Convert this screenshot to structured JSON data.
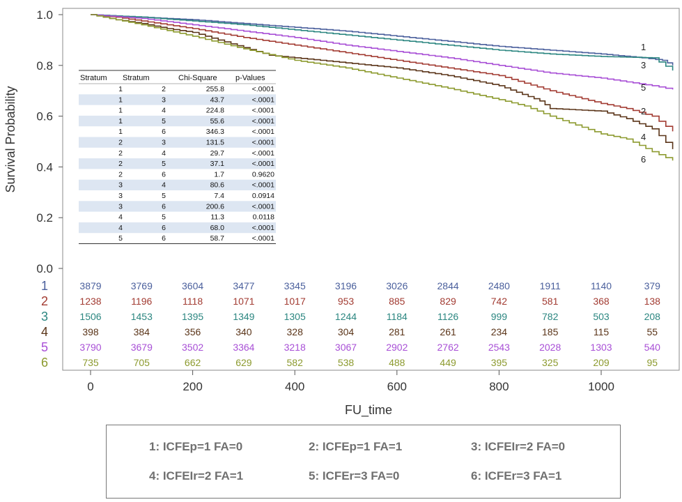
{
  "chart_data": {
    "type": "line",
    "subtype": "kaplan-meier survival curves",
    "xlabel": "FU_time",
    "ylabel": "Survival Probability",
    "xlim": [
      -30,
      1150
    ],
    "ylim": [
      0.0,
      1.0
    ],
    "xticks": [
      0,
      200,
      400,
      600,
      800,
      1000
    ],
    "yticks": [
      0.0,
      0.2,
      0.4,
      0.6,
      0.8,
      1.0
    ],
    "ytick_labels": [
      "0.0",
      "0.2",
      "0.4",
      "0.6",
      "0.8",
      "1.0"
    ],
    "grid": false,
    "series": [
      {
        "name": "1",
        "color": "#4a5f9c",
        "x": [
          0,
          100,
          200,
          300,
          400,
          500,
          600,
          700,
          800,
          900,
          1000,
          1080,
          1120,
          1140
        ],
        "y": [
          1.0,
          0.99,
          0.98,
          0.965,
          0.95,
          0.935,
          0.915,
          0.895,
          0.875,
          0.86,
          0.845,
          0.83,
          0.82,
          0.8
        ]
      },
      {
        "name": "2",
        "color": "#a23b32",
        "x": [
          0,
          50,
          100,
          200,
          300,
          400,
          500,
          600,
          700,
          800,
          900,
          1000,
          1050,
          1100,
          1140
        ],
        "y": [
          1.0,
          0.99,
          0.975,
          0.945,
          0.91,
          0.88,
          0.85,
          0.82,
          0.79,
          0.76,
          0.7,
          0.65,
          0.63,
          0.6,
          0.54
        ]
      },
      {
        "name": "3",
        "color": "#2b8680",
        "x": [
          0,
          100,
          200,
          300,
          400,
          500,
          600,
          700,
          800,
          900,
          1000,
          1100,
          1140
        ],
        "y": [
          1.0,
          0.99,
          0.975,
          0.96,
          0.94,
          0.92,
          0.9,
          0.88,
          0.86,
          0.845,
          0.835,
          0.83,
          0.78
        ]
      },
      {
        "name": "4",
        "color": "#5a3418",
        "x": [
          0,
          50,
          100,
          150,
          200,
          300,
          350,
          400,
          500,
          600,
          700,
          800,
          880,
          900,
          1000,
          1050,
          1100,
          1140
        ],
        "y": [
          1.0,
          0.98,
          0.965,
          0.945,
          0.93,
          0.87,
          0.84,
          0.83,
          0.81,
          0.79,
          0.76,
          0.72,
          0.66,
          0.63,
          0.62,
          0.59,
          0.55,
          0.47
        ]
      },
      {
        "name": "5",
        "color": "#a84fd6",
        "x": [
          0,
          100,
          200,
          300,
          400,
          500,
          600,
          700,
          800,
          900,
          1000,
          1100,
          1140
        ],
        "y": [
          1.0,
          0.985,
          0.96,
          0.935,
          0.91,
          0.88,
          0.855,
          0.83,
          0.8,
          0.77,
          0.75,
          0.72,
          0.705
        ]
      },
      {
        "name": "6",
        "color": "#8c9a2e",
        "x": [
          0,
          50,
          100,
          200,
          300,
          400,
          500,
          600,
          700,
          800,
          850,
          900,
          1000,
          1050,
          1100,
          1140
        ],
        "y": [
          1.0,
          0.98,
          0.96,
          0.915,
          0.865,
          0.82,
          0.79,
          0.75,
          0.71,
          0.665,
          0.64,
          0.6,
          0.53,
          0.51,
          0.46,
          0.425
        ]
      }
    ],
    "curve_labels": [
      "1",
      "3",
      "5",
      "2",
      "4",
      "6"
    ],
    "at_risk": {
      "x": [
        0,
        100,
        200,
        300,
        400,
        500,
        600,
        700,
        800,
        900,
        1000,
        1100
      ],
      "rows": [
        {
          "label": "1",
          "color": "#4a5f9c",
          "values": [
            "3879",
            "3769",
            "3604",
            "3477",
            "3345",
            "3196",
            "3026",
            "2844",
            "2480",
            "1911",
            "1140",
            "379"
          ]
        },
        {
          "label": "2",
          "color": "#a23b32",
          "values": [
            "1238",
            "1196",
            "1118",
            "1071",
            "1017",
            "953",
            "885",
            "829",
            "742",
            "581",
            "368",
            "138"
          ]
        },
        {
          "label": "3",
          "color": "#2b8680",
          "values": [
            "1506",
            "1453",
            "1395",
            "1349",
            "1305",
            "1244",
            "1184",
            "1126",
            "999",
            "782",
            "503",
            "208"
          ]
        },
        {
          "label": "4",
          "color": "#5a3418",
          "values": [
            "398",
            "384",
            "356",
            "340",
            "328",
            "304",
            "281",
            "261",
            "234",
            "185",
            "115",
            "55"
          ]
        },
        {
          "label": "5",
          "color": "#a84fd6",
          "values": [
            "3790",
            "3679",
            "3502",
            "3364",
            "3218",
            "3067",
            "2902",
            "2762",
            "2543",
            "2028",
            "1303",
            "540"
          ]
        },
        {
          "label": "6",
          "color": "#8c9a2e",
          "values": [
            "735",
            "705",
            "662",
            "629",
            "582",
            "538",
            "488",
            "449",
            "395",
            "325",
            "209",
            "95"
          ]
        }
      ]
    },
    "table": {
      "columns": [
        "Stratum",
        "Stratum",
        "Chi-Square",
        "p-Values"
      ],
      "rows": [
        [
          "1",
          "2",
          "255.8",
          "<.0001"
        ],
        [
          "1",
          "3",
          "43.7",
          "<.0001"
        ],
        [
          "1",
          "4",
          "224.8",
          "<.0001"
        ],
        [
          "1",
          "5",
          "55.6",
          "<.0001"
        ],
        [
          "1",
          "6",
          "346.3",
          "<.0001"
        ],
        [
          "2",
          "3",
          "131.5",
          "<.0001"
        ],
        [
          "2",
          "4",
          "29.7",
          "<.0001"
        ],
        [
          "2",
          "5",
          "37.1",
          "<.0001"
        ],
        [
          "2",
          "6",
          "1.7",
          "0.9620"
        ],
        [
          "3",
          "4",
          "80.6",
          "<.0001"
        ],
        [
          "3",
          "5",
          "7.4",
          "0.0914"
        ],
        [
          "3",
          "6",
          "200.6",
          "<.0001"
        ],
        [
          "4",
          "5",
          "11.3",
          "0.0118"
        ],
        [
          "4",
          "6",
          "68.0",
          "<.0001"
        ],
        [
          "5",
          "6",
          "58.7",
          "<.0001"
        ]
      ]
    }
  },
  "legend": {
    "items": [
      "1: ICFEp=1 FA=0",
      "2: ICFEp=1 FA=1",
      "3: ICFEIr=2 FA=0",
      "4: ICFEIr=2 FA=1",
      "5: ICFEr=3 FA=0",
      "6: ICFEr=3 FA=1"
    ]
  }
}
